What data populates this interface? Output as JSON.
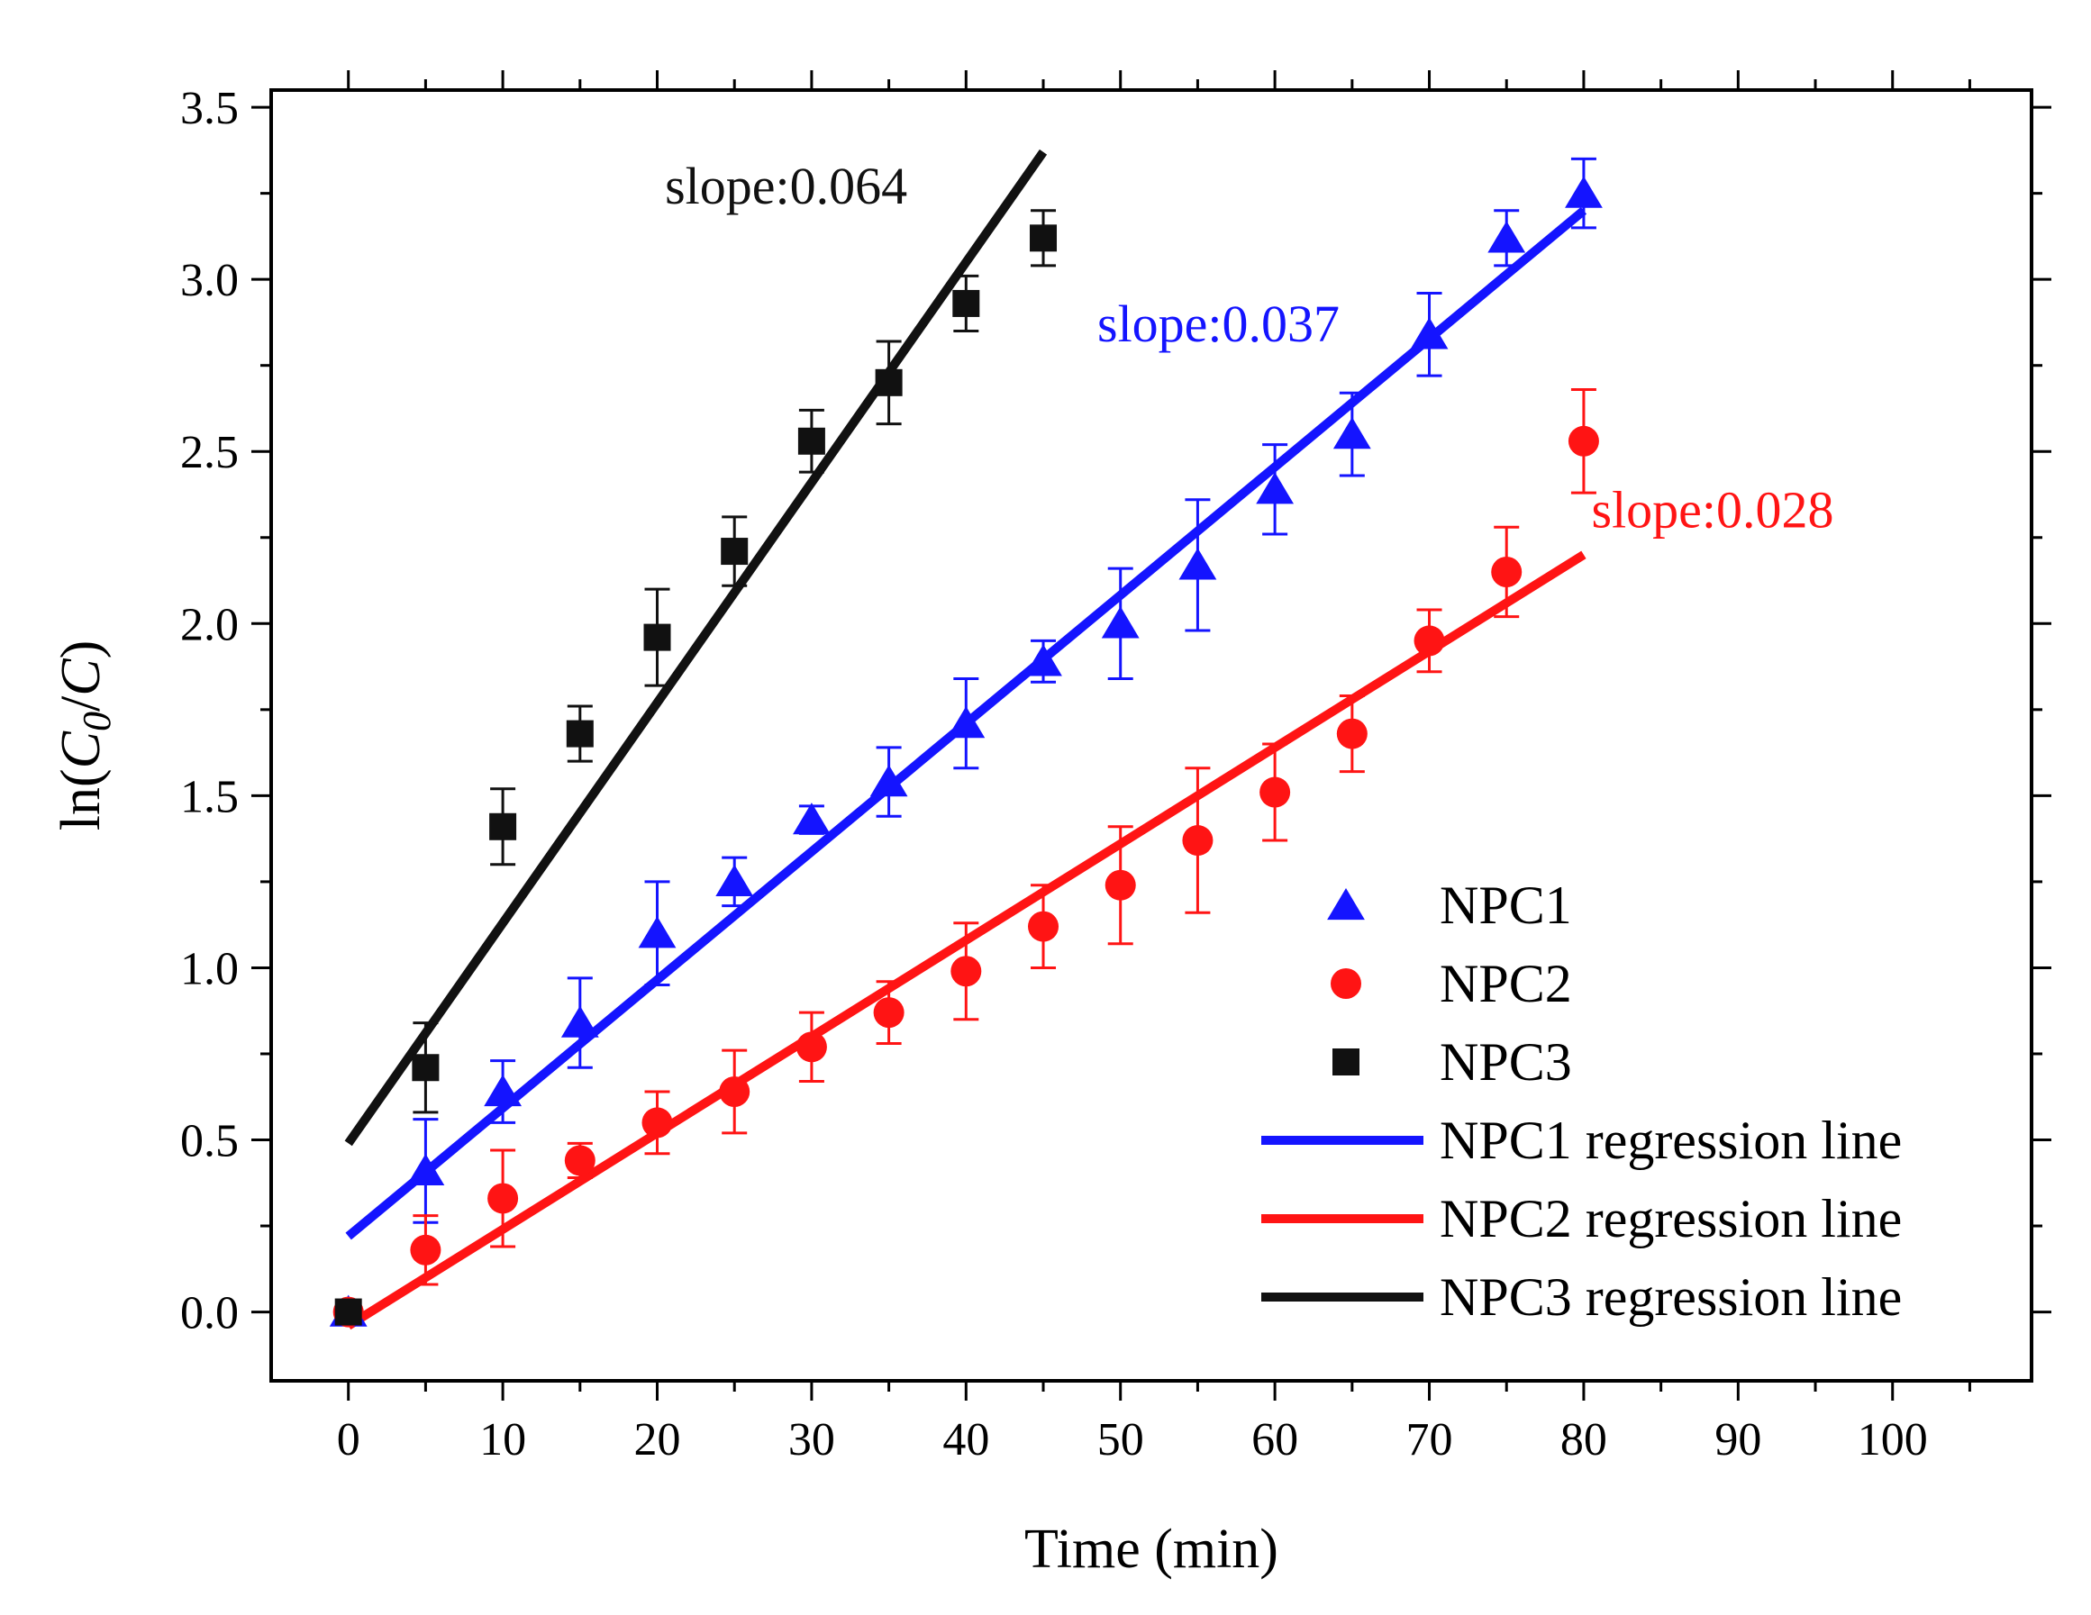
{
  "chart_data": {
    "type": "scatter",
    "title": "",
    "xlabel": "Time (min)",
    "ylabel_parts": {
      "prefix": "ln(",
      "c0_letter": "C",
      "c0_sub": "0",
      "slash": "/",
      "c_letter": "C",
      "suffix": ")"
    },
    "xlim": [
      -5,
      109
    ],
    "ylim": [
      -0.2,
      3.55
    ],
    "x_ticks": [
      0,
      10,
      20,
      30,
      40,
      50,
      60,
      70,
      80,
      90,
      100
    ],
    "x_tick_labels": [
      "0",
      "10",
      "20",
      "30",
      "40",
      "50",
      "60",
      "70",
      "80",
      "90",
      "100"
    ],
    "y_ticks": [
      0.0,
      0.5,
      1.0,
      1.5,
      2.0,
      2.5,
      3.0,
      3.5
    ],
    "y_tick_labels": [
      "0.0",
      "0.5",
      "1.0",
      "1.5",
      "2.0",
      "2.5",
      "3.0",
      "3.5"
    ],
    "grid": false,
    "legend_position": "bottom-right",
    "series": [
      {
        "name": "NPC1",
        "marker": "triangle",
        "color": "#1414ff",
        "x": [
          0,
          5,
          10,
          15,
          20,
          25,
          30,
          35,
          40,
          45,
          50,
          55,
          60,
          65,
          70,
          75,
          80
        ],
        "y": [
          0.0,
          0.41,
          0.64,
          0.84,
          1.1,
          1.25,
          1.43,
          1.54,
          1.71,
          1.89,
          2.0,
          2.17,
          2.39,
          2.55,
          2.84,
          3.12,
          3.25
        ],
        "err": [
          0.0,
          0.15,
          0.09,
          0.13,
          0.15,
          0.07,
          0.04,
          0.1,
          0.13,
          0.06,
          0.16,
          0.19,
          0.13,
          0.12,
          0.12,
          0.08,
          0.1
        ]
      },
      {
        "name": "NPC2",
        "marker": "circle",
        "color": "#ff1414",
        "x": [
          0,
          5,
          10,
          15,
          20,
          25,
          30,
          35,
          40,
          45,
          50,
          55,
          60,
          65,
          70,
          75,
          80
        ],
        "y": [
          0.0,
          0.18,
          0.33,
          0.44,
          0.55,
          0.64,
          0.77,
          0.87,
          0.99,
          1.12,
          1.24,
          1.37,
          1.51,
          1.68,
          1.95,
          2.15,
          2.53
        ],
        "err": [
          0.0,
          0.1,
          0.14,
          0.05,
          0.09,
          0.12,
          0.1,
          0.09,
          0.14,
          0.12,
          0.17,
          0.21,
          0.14,
          0.11,
          0.09,
          0.13,
          0.15
        ]
      },
      {
        "name": "NPC3",
        "marker": "square",
        "color": "#111111",
        "x": [
          0,
          5,
          10,
          15,
          20,
          25,
          30,
          35,
          40,
          45
        ],
        "y": [
          0.0,
          0.71,
          1.41,
          1.68,
          1.96,
          2.21,
          2.53,
          2.7,
          2.93,
          3.12
        ],
        "err": [
          0.0,
          0.13,
          0.11,
          0.08,
          0.14,
          0.1,
          0.09,
          0.12,
          0.08,
          0.08
        ]
      }
    ],
    "regression_lines": [
      {
        "name": "NPC1 regression line",
        "color": "#1414ff",
        "x": [
          0,
          80
        ],
        "y": [
          0.22,
          3.2
        ]
      },
      {
        "name": "NPC2 regression line",
        "color": "#ff1414",
        "x": [
          0,
          80
        ],
        "y": [
          -0.04,
          2.2
        ]
      },
      {
        "name": "NPC3 regression line",
        "color": "#111111",
        "x": [
          0,
          45
        ],
        "y": [
          0.49,
          3.37
        ]
      }
    ],
    "annotations": [
      {
        "text": "slope:0.064",
        "color": "#111111",
        "x": 20.5,
        "y": 3.22
      },
      {
        "text": "slope:0.037",
        "color": "#1414ff",
        "x": 48.5,
        "y": 2.82
      },
      {
        "text": "slope:0.028",
        "color": "#ff1414",
        "x": 80.5,
        "y": 2.28
      }
    ],
    "legend": [
      {
        "label": "NPC1",
        "kind": "triangle",
        "color": "#1414ff"
      },
      {
        "label": "NPC2",
        "kind": "circle",
        "color": "#ff1414"
      },
      {
        "label": "NPC3",
        "kind": "square",
        "color": "#111111"
      },
      {
        "label": "NPC1 regression line",
        "kind": "line",
        "color": "#1414ff"
      },
      {
        "label": "NPC2 regression line",
        "kind": "line",
        "color": "#ff1414"
      },
      {
        "label": "NPC3 regression line",
        "kind": "line",
        "color": "#111111"
      }
    ]
  }
}
